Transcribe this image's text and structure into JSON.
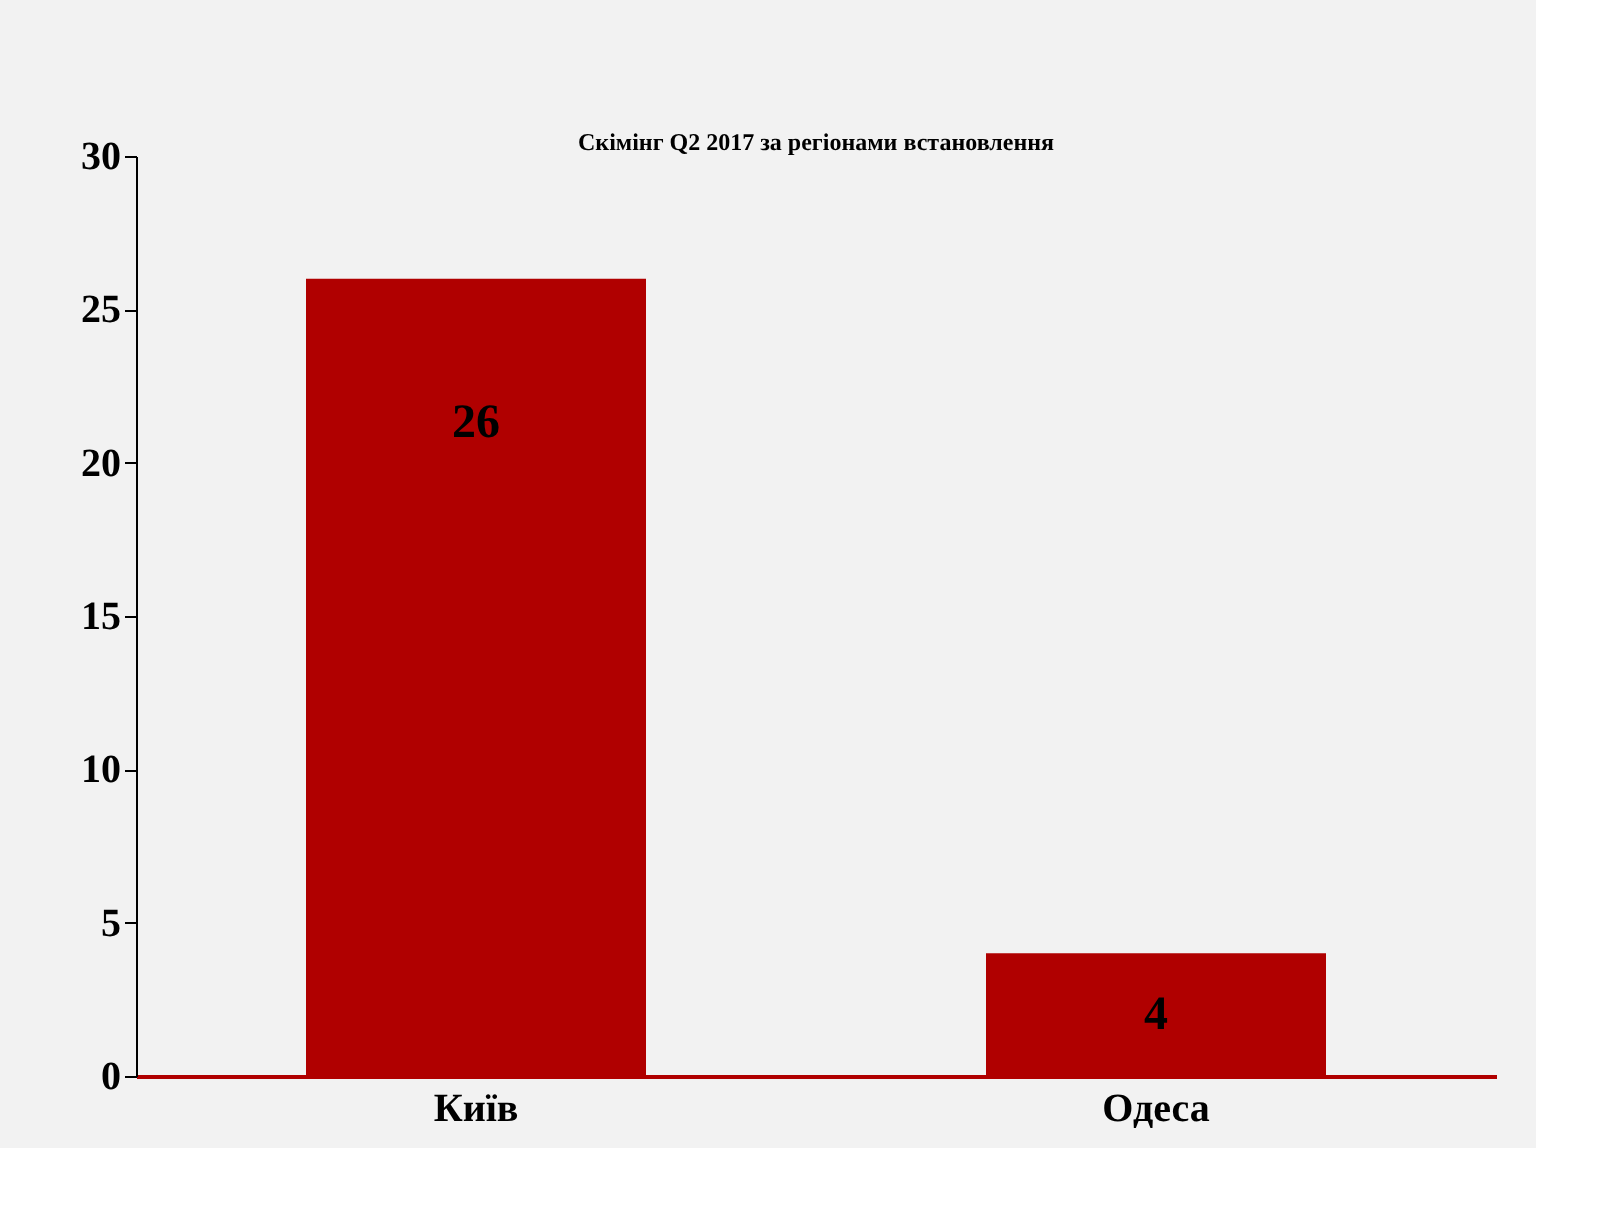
{
  "chart_data": {
    "type": "bar",
    "title": "Скімінг Q2  2017 за регіонами встановлення",
    "categories": [
      "Київ",
      "Одеса"
    ],
    "values": [
      26,
      4
    ],
    "color": "#b00000",
    "ylim": [
      0,
      30
    ],
    "yticks": [
      0,
      5,
      10,
      15,
      20,
      25,
      30
    ],
    "grid": false,
    "data_labels": true
  }
}
